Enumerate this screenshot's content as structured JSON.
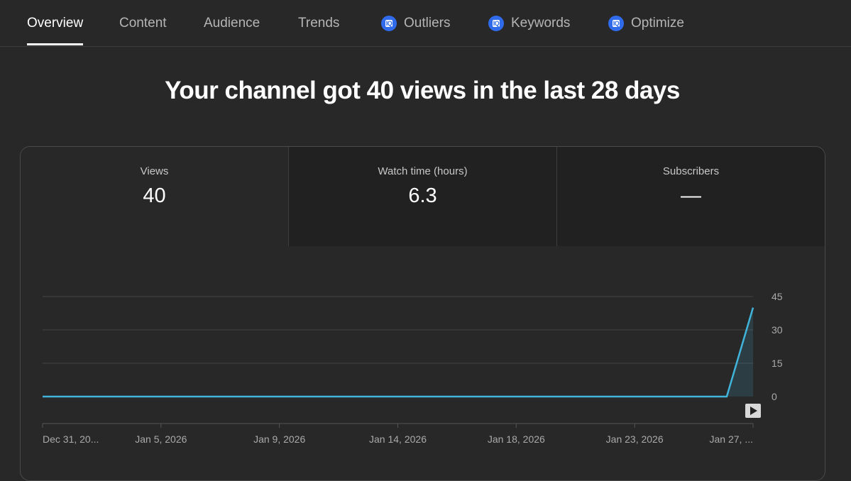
{
  "tabs": [
    {
      "label": "Overview",
      "active": true,
      "icon": null
    },
    {
      "label": "Content",
      "active": false,
      "icon": null
    },
    {
      "label": "Audience",
      "active": false,
      "icon": null
    },
    {
      "label": "Trends",
      "active": false,
      "icon": null
    },
    {
      "label": "Outliers",
      "active": false,
      "icon": "vidiq-icon"
    },
    {
      "label": "Keywords",
      "active": false,
      "icon": "vidiq-icon"
    },
    {
      "label": "Optimize",
      "active": false,
      "icon": "vidiq-icon"
    }
  ],
  "iq_icon_text": "IQ",
  "headline": "Your channel got 40 views in the last 28 days",
  "metrics": [
    {
      "label": "Views",
      "value": "40"
    },
    {
      "label": "Watch time (hours)",
      "value": "6.3"
    },
    {
      "label": "Subscribers",
      "value": "—"
    }
  ],
  "colors": {
    "accent": "#41b4db",
    "tab_icon": "#2f6bea"
  },
  "chart_data": {
    "type": "area",
    "series": [
      {
        "values": [
          0,
          0,
          0,
          0,
          0,
          0,
          0,
          0,
          0,
          0,
          0,
          0,
          0,
          0,
          0,
          0,
          0,
          0,
          0,
          0,
          0,
          0,
          0,
          0,
          0,
          0,
          0,
          40
        ]
      }
    ],
    "x_tick_labels": [
      "Dec 31, 20...",
      "Jan 5, 2026",
      "Jan 9, 2026",
      "Jan 14, 2026",
      "Jan 18, 2026",
      "Jan 23, 2026",
      "Jan 27, ..."
    ],
    "y_ticks": [
      0,
      15,
      30,
      45
    ],
    "ylim": [
      0,
      45
    ],
    "grid": true,
    "y_axis_side": "right"
  }
}
